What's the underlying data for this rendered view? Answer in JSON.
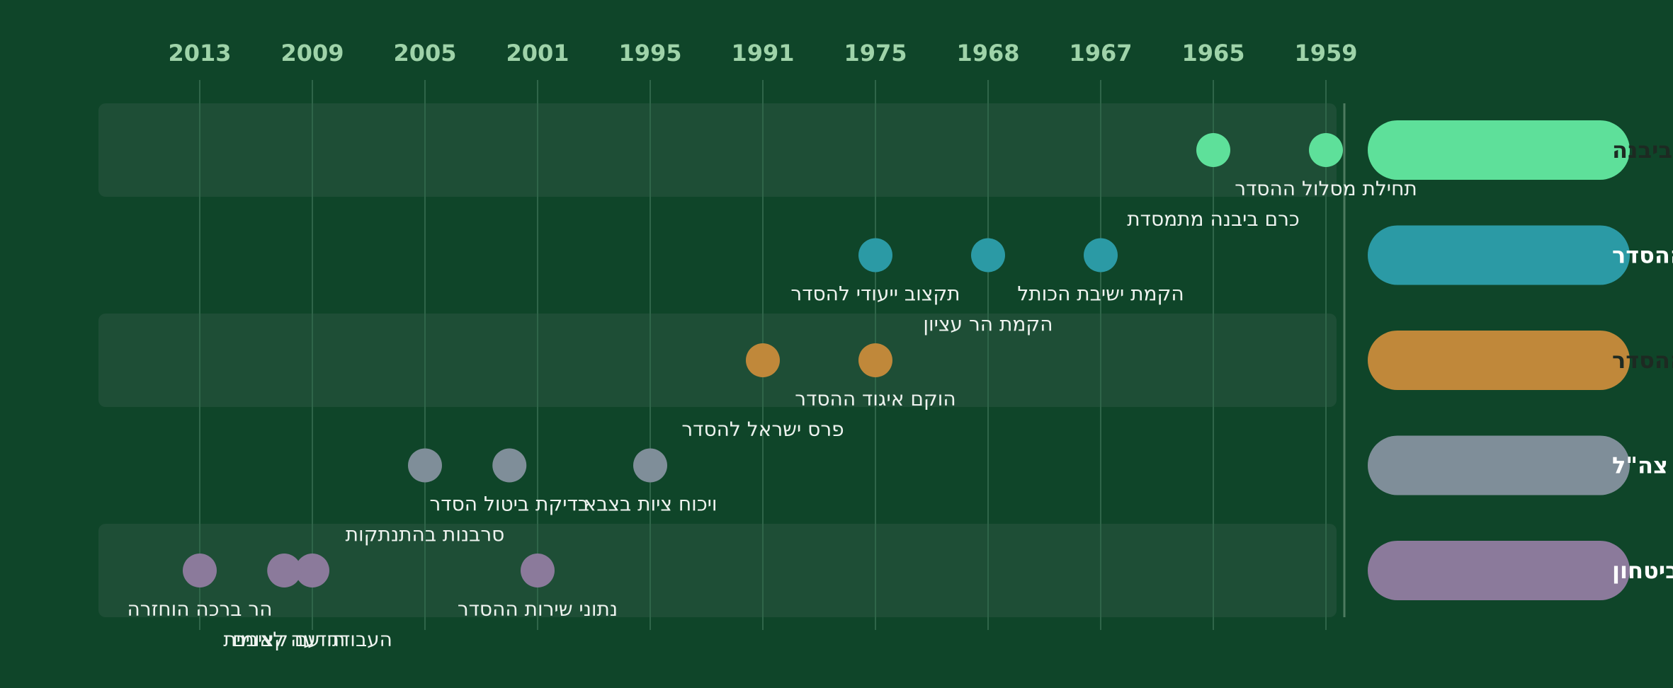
{
  "axis_years": [
    2013,
    2009,
    2005,
    2001,
    1995,
    1991,
    1975,
    1968,
    1967,
    1965,
    1959
  ],
  "groups": [
    {
      "name": "כרם ביבנה",
      "color": "#5ee09a",
      "events": [
        {
          "year": 1959,
          "label": "תחילת מסלול ההסדר"
        },
        {
          "year": 1965,
          "label": "כרם ביבנה מתמסדת"
        }
      ]
    },
    {
      "name": "ישיבות ההסדר",
      "color": "#2b9aa5",
      "events": [
        {
          "year": 1967,
          "label": "הקמת ישיבת הכותל"
        },
        {
          "year": 1968,
          "label": "הקמת הר עציון"
        },
        {
          "year": 1975,
          "label": "תקצוב ייעודי להסדר"
        }
      ]
    },
    {
      "name": "איגוד ההסדר",
      "color": "#c0883a",
      "events": [
        {
          "year": 1975,
          "label": "הוקם איגוד ההסדר"
        },
        {
          "year": 1991,
          "label": "פרס ישראל להסדר"
        }
      ]
    },
    {
      "name": "צה\"ל",
      "color": "#7f8e99",
      "events": [
        {
          "year": 1995,
          "label": "ויכוח ציות בצבא"
        },
        {
          "year": 2005,
          "label": "סרבנות בהתנתקות"
        },
        {
          "year": 2002,
          "label": "בדיקת ביטול הסדר"
        }
      ]
    },
    {
      "name": "משרד הביטחון",
      "color": "#8b7a9b",
      "events": [
        {
          "year": 2001,
          "label": "נתוני שירות ההסדר"
        },
        {
          "year": 2009,
          "label": "העבודה עם קצינים"
        },
        {
          "year": 2013,
          "label": "הר ברכה הוחזרה"
        },
        {
          "year": 2010,
          "label": "תודעה לאומית"
        }
      ]
    }
  ]
}
